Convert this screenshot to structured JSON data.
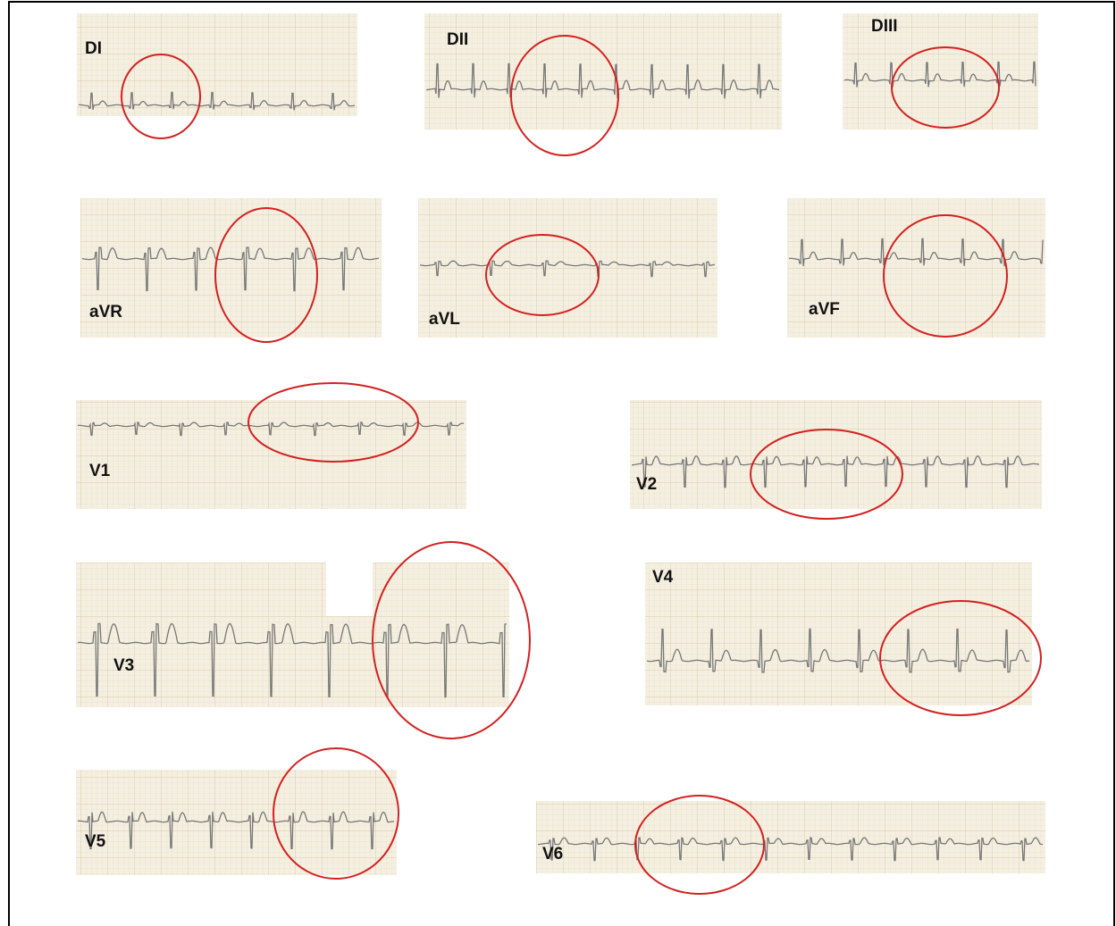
{
  "leads": [
    {
      "label": "DI"
    },
    {
      "label": "DII"
    },
    {
      "label": "DIII"
    },
    {
      "label": "aVR"
    },
    {
      "label": "aVL"
    },
    {
      "label": "aVF"
    },
    {
      "label": "V1"
    },
    {
      "label": "V2"
    },
    {
      "label": "V3"
    },
    {
      "label": "V4"
    },
    {
      "label": "V5"
    },
    {
      "label": "V6"
    }
  ]
}
